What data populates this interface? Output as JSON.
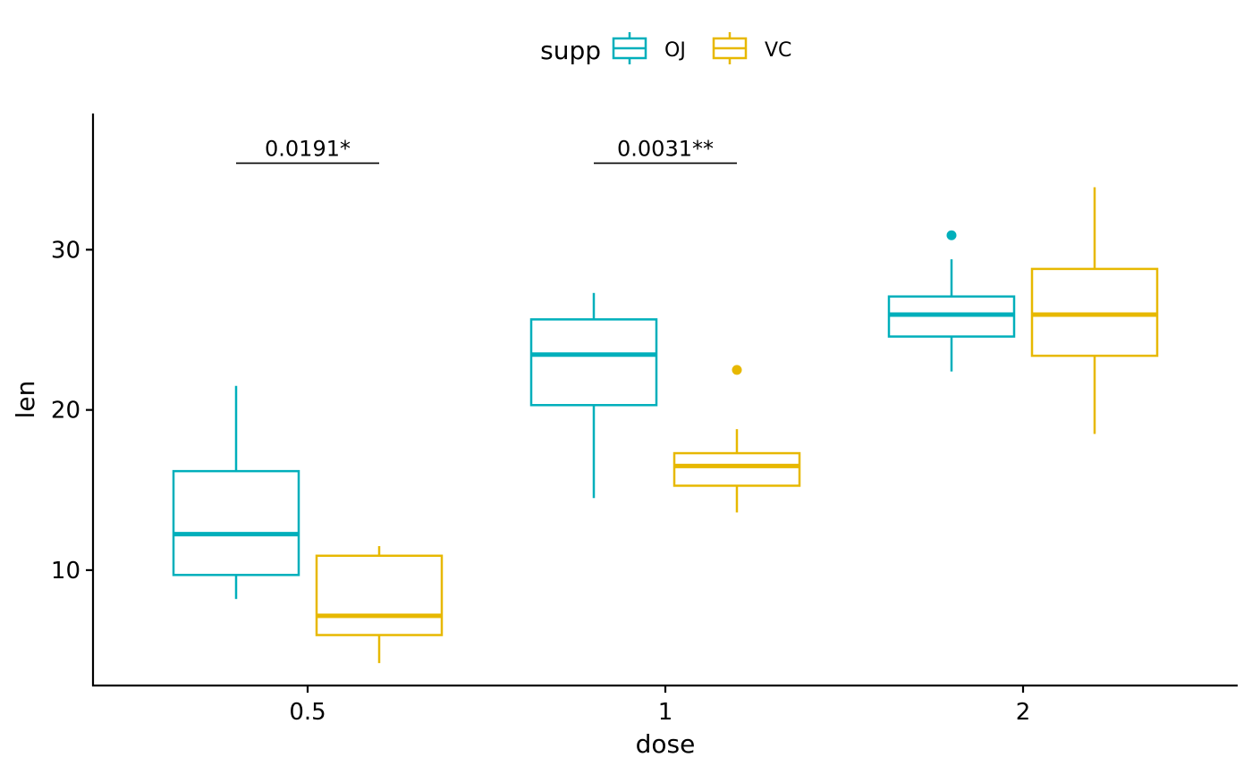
{
  "chart_data": {
    "type": "boxplot",
    "xlabel": "dose",
    "ylabel": "len",
    "categories": [
      "0.5",
      "1",
      "2"
    ],
    "ylim": [
      2.8,
      38.5
    ],
    "yticks": [
      10,
      20,
      30
    ],
    "grid": false,
    "legend": {
      "title": "supp",
      "placement": "top"
    },
    "series": [
      {
        "name": "OJ",
        "color": "#00AFBB",
        "boxes": [
          {
            "category": "0.5",
            "min": 8.2,
            "q1": 9.7,
            "median": 12.25,
            "q3": 16.18,
            "max": 21.5,
            "outliers": []
          },
          {
            "category": "1",
            "min": 14.5,
            "q1": 20.3,
            "median": 23.45,
            "q3": 25.65,
            "max": 27.3,
            "outliers": []
          },
          {
            "category": "2",
            "min": 22.4,
            "q1": 24.58,
            "median": 25.95,
            "q3": 27.08,
            "max": 29.4,
            "outliers": [
              30.9
            ]
          }
        ]
      },
      {
        "name": "VC",
        "color": "#E7B800",
        "boxes": [
          {
            "category": "0.5",
            "min": 4.2,
            "q1": 5.95,
            "median": 7.15,
            "q3": 10.9,
            "max": 11.5,
            "outliers": []
          },
          {
            "category": "1",
            "min": 13.6,
            "q1": 15.27,
            "median": 16.5,
            "q3": 17.3,
            "max": 18.8,
            "outliers": [
              22.5
            ]
          },
          {
            "category": "2",
            "min": 18.5,
            "q1": 23.38,
            "median": 25.95,
            "q3": 28.8,
            "max": 33.9,
            "outliers": []
          }
        ]
      }
    ],
    "annotations": [
      {
        "category": "0.5",
        "label": "0.0191*",
        "y": 35.4
      },
      {
        "category": "1",
        "label": "0.0031**",
        "y": 35.4
      }
    ]
  }
}
